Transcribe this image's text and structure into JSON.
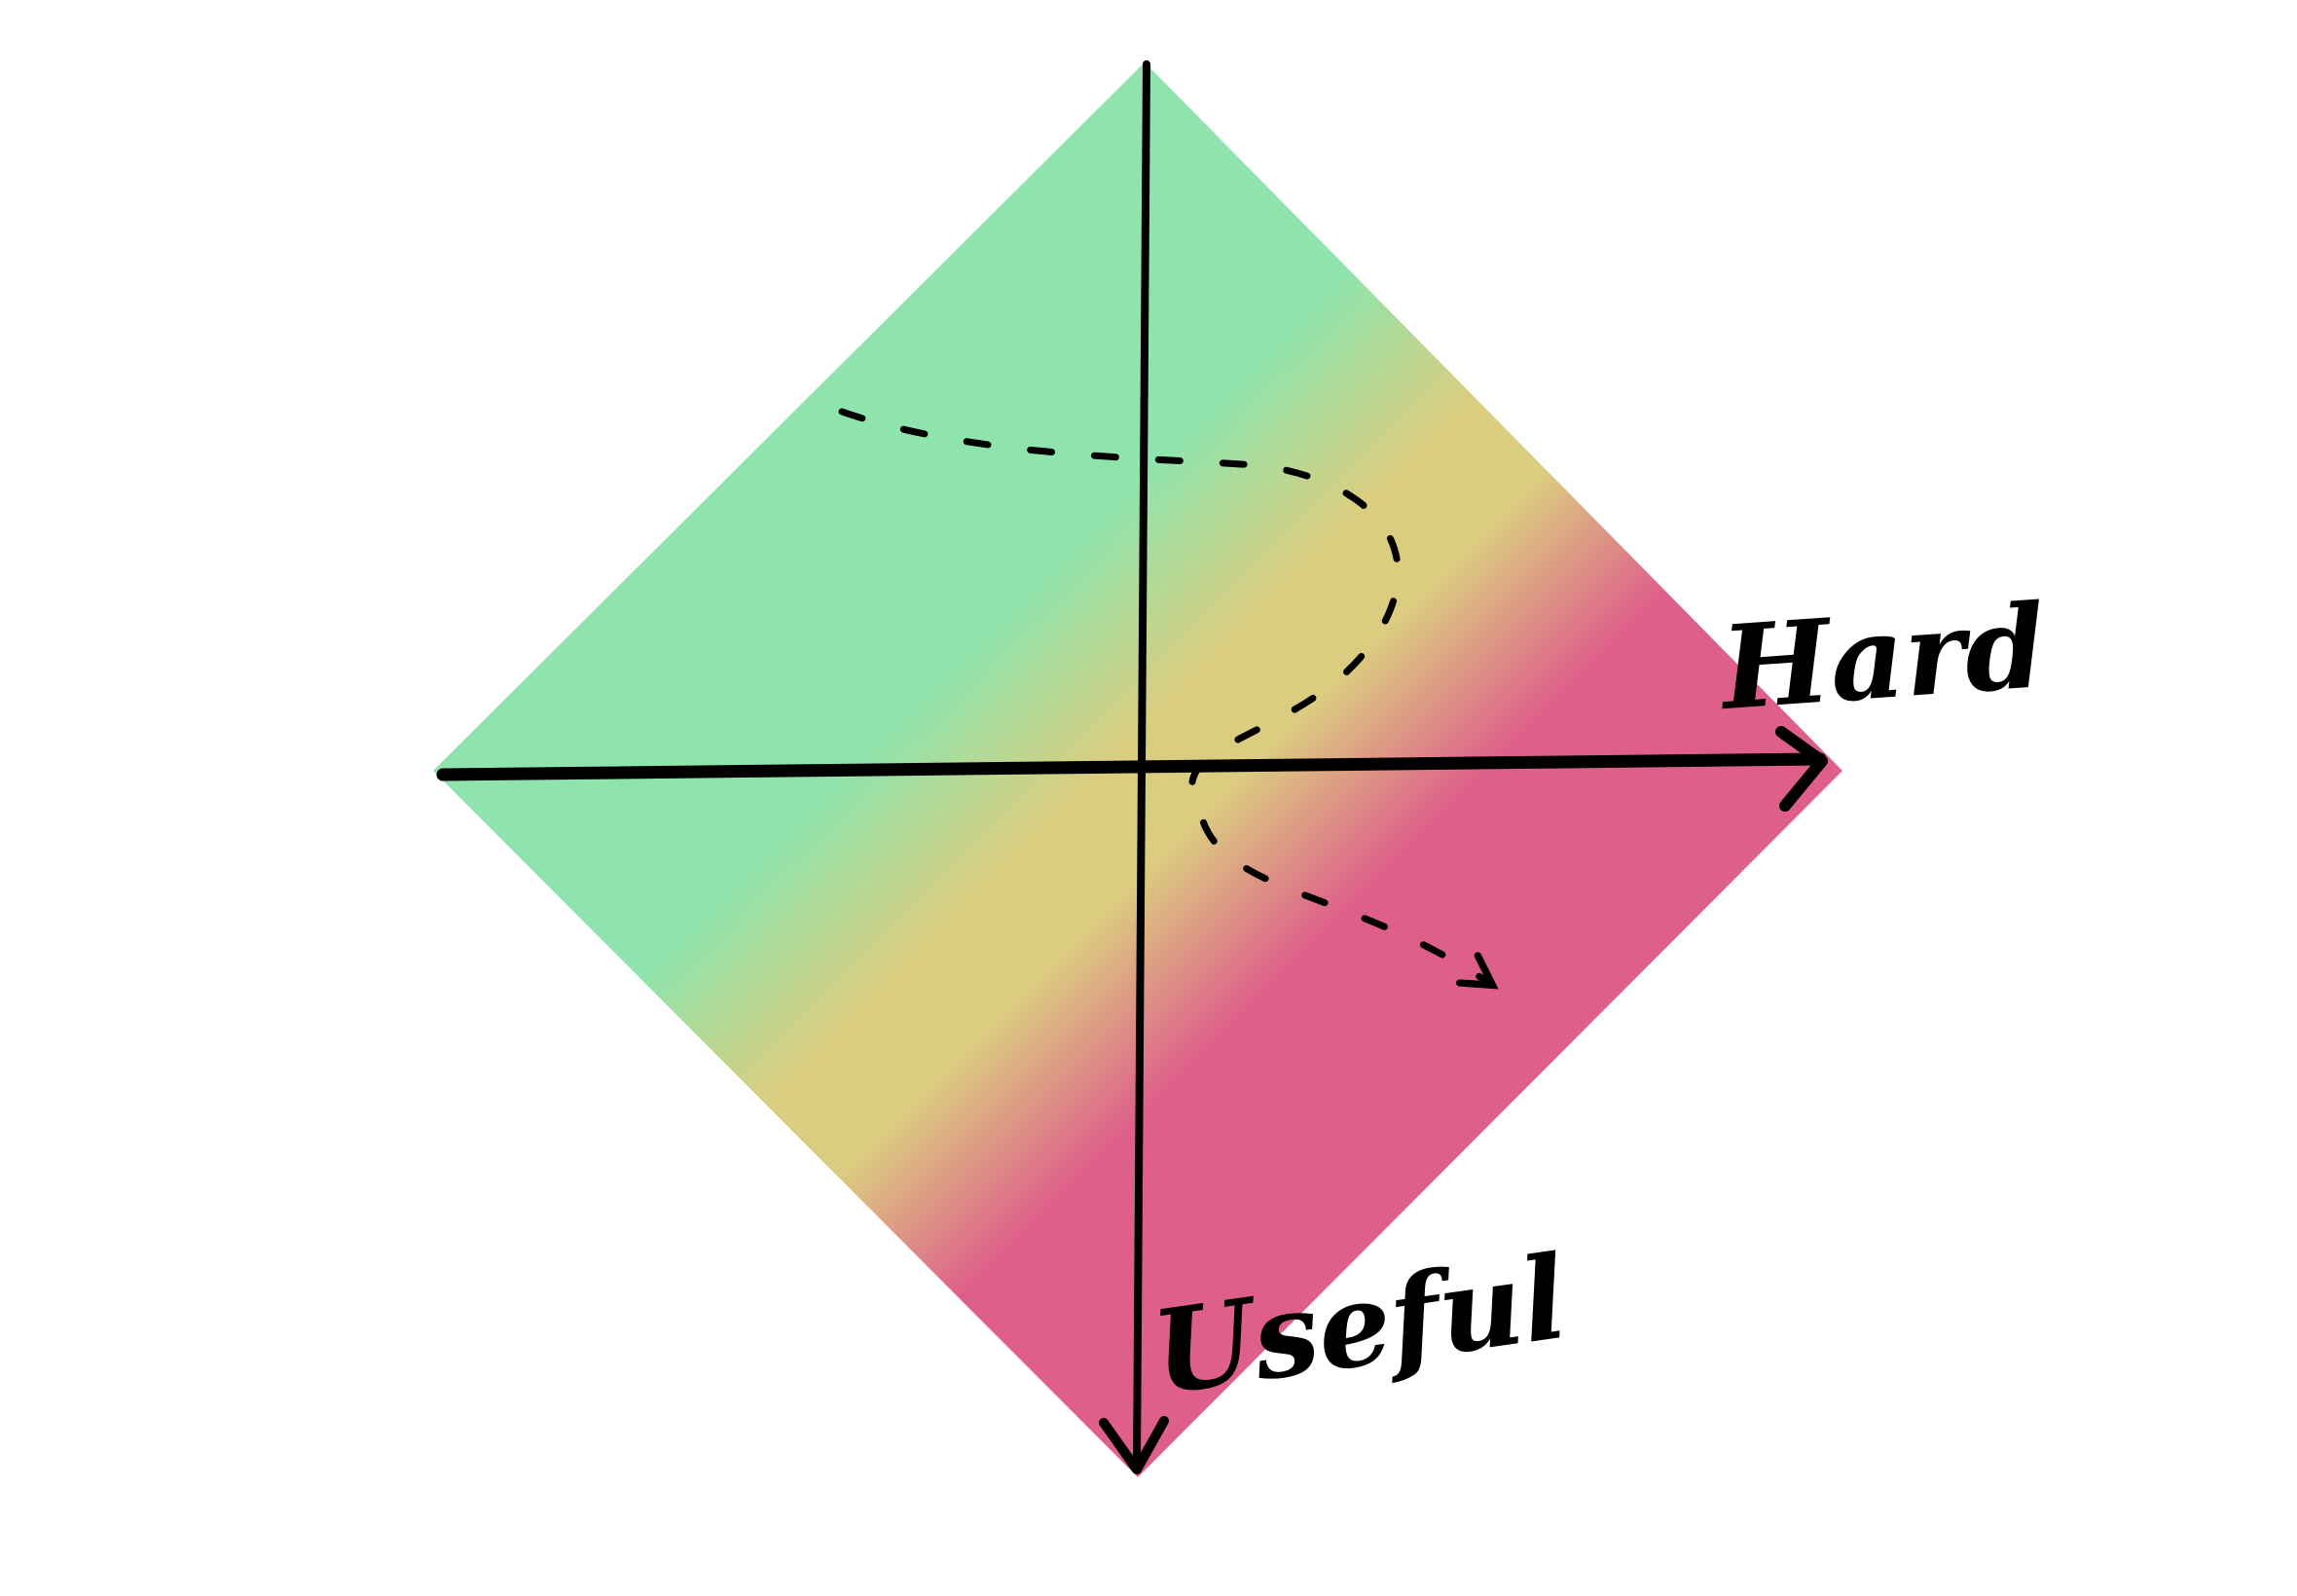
{
  "axes": {
    "x_label": "Hard",
    "y_label": "Useful"
  },
  "colors": {
    "background": "#ffffff",
    "low": "#8ee4ac",
    "mid": "#dbcd7f",
    "high": "#de5f8a",
    "ink": "#000000"
  }
}
